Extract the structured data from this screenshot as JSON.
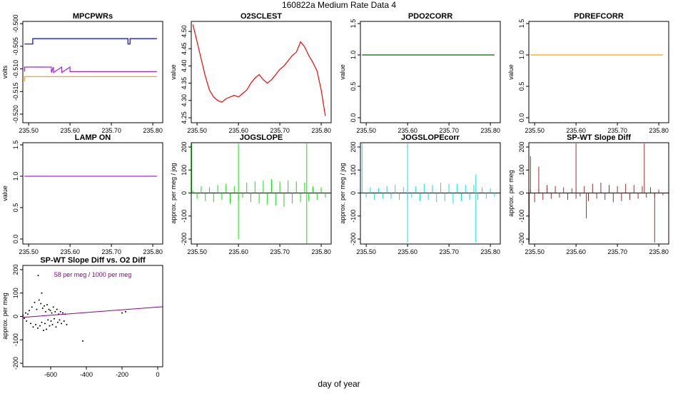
{
  "title": "160822a   Medium Rate Data 4",
  "xlabel": "day of year",
  "chart_data": [
    {
      "type": "line",
      "title": "MPCPWRs",
      "ylabel": "volts",
      "xlim": [
        235.486,
        235.824
      ],
      "ylim": [
        -0.5219,
        -0.4995
      ],
      "xticks": [
        {
          "value": 235.5,
          "label": "235.50"
        },
        {
          "value": 235.6,
          "label": "235.60"
        },
        {
          "value": 235.7,
          "label": "235.70"
        },
        {
          "value": 235.8,
          "label": "235.80"
        }
      ],
      "yticks": [
        {
          "value": -0.5,
          "label": "-0.500"
        },
        {
          "value": -0.505,
          "label": "-0.505"
        },
        {
          "value": -0.51,
          "label": "-0.510"
        },
        {
          "value": -0.515,
          "label": "-0.515"
        },
        {
          "value": -0.52,
          "label": "-0.520"
        }
      ],
      "series": [
        {
          "color": "#0000ff",
          "x": [
            235.49,
            235.51,
            235.51,
            235.74,
            235.74,
            235.745,
            235.745,
            235.81
          ],
          "values": [
            -0.5045,
            -0.5045,
            -0.5033,
            -0.5033,
            -0.5045,
            -0.5045,
            -0.5033,
            -0.5033
          ]
        },
        {
          "color": "#a020f0",
          "x": [
            235.49,
            235.49,
            235.495,
            235.555,
            235.555,
            235.56,
            235.56,
            235.58,
            235.58,
            235.6,
            235.6,
            235.81
          ],
          "values": [
            -0.5106,
            -0.5096,
            -0.5096,
            -0.5096,
            -0.5108,
            -0.5096,
            -0.5108,
            -0.5096,
            -0.5108,
            -0.5096,
            -0.5106,
            -0.5106
          ]
        },
        {
          "color": "#ffa500",
          "x": [
            235.49,
            235.49,
            235.81
          ],
          "values": [
            -0.5128,
            -0.5117,
            -0.5117
          ]
        }
      ]
    },
    {
      "type": "line",
      "title": "O2SCLEST",
      "ylabel": "value",
      "xlim": [
        235.486,
        235.824
      ],
      "ylim": [
        4.2355,
        4.529
      ],
      "xticks": [
        {
          "value": 235.5,
          "label": "235.50"
        },
        {
          "value": 235.6,
          "label": "235.60"
        },
        {
          "value": 235.7,
          "label": "235.70"
        },
        {
          "value": 235.8,
          "label": "235.80"
        }
      ],
      "yticks": [
        {
          "value": 4.25,
          "label": "4.25"
        },
        {
          "value": 4.3,
          "label": "4.30"
        },
        {
          "value": 4.35,
          "label": "4.35"
        },
        {
          "value": 4.4,
          "label": "4.40"
        },
        {
          "value": 4.45,
          "label": "4.45"
        },
        {
          "value": 4.5,
          "label": "4.50"
        }
      ],
      "x": [
        235.49,
        235.5,
        235.51,
        235.52,
        235.53,
        235.54,
        235.55,
        235.56,
        235.57,
        235.58,
        235.59,
        235.6,
        235.61,
        235.62,
        235.63,
        235.64,
        235.65,
        235.66,
        235.67,
        235.68,
        235.69,
        235.7,
        235.71,
        235.72,
        235.73,
        235.74,
        235.75,
        235.76,
        235.77,
        235.78,
        235.79,
        235.8,
        235.81
      ],
      "series": [
        {
          "color": "#ff0000",
          "values": [
            4.52,
            4.47,
            4.42,
            4.37,
            4.33,
            4.31,
            4.3,
            4.295,
            4.305,
            4.31,
            4.315,
            4.31,
            4.32,
            4.33,
            4.35,
            4.365,
            4.375,
            4.36,
            4.35,
            4.36,
            4.375,
            4.39,
            4.4,
            4.415,
            4.43,
            4.44,
            4.47,
            4.455,
            4.43,
            4.41,
            4.385,
            4.33,
            4.255
          ]
        }
      ]
    },
    {
      "type": "line",
      "title": "PDO2CORR",
      "ylabel": "value",
      "xlim": [
        235.486,
        235.824
      ],
      "ylim": [
        -0.08,
        1.534
      ],
      "xticks": [
        {
          "value": 235.5,
          "label": "235.50"
        },
        {
          "value": 235.6,
          "label": "235.60"
        },
        {
          "value": 235.7,
          "label": "235.70"
        },
        {
          "value": 235.8,
          "label": "235.80"
        }
      ],
      "yticks": [
        {
          "value": 0,
          "label": "0.0"
        },
        {
          "value": 0.5,
          "label": "0.5"
        },
        {
          "value": 1,
          "label": "1.0"
        },
        {
          "value": 1.5,
          "label": "1.5"
        }
      ],
      "x": [
        235.49,
        235.81
      ],
      "series": [
        {
          "color": "#006400",
          "values": [
            1,
            1
          ]
        }
      ]
    },
    {
      "type": "line",
      "title": "PDREFCORR",
      "ylabel": "value",
      "xlim": [
        235.486,
        235.824
      ],
      "ylim": [
        -0.08,
        1.534
      ],
      "xticks": [
        {
          "value": 235.5,
          "label": "235.50"
        },
        {
          "value": 235.6,
          "label": "235.60"
        },
        {
          "value": 235.7,
          "label": "235.70"
        },
        {
          "value": 235.8,
          "label": "235.80"
        }
      ],
      "yticks": [
        {
          "value": 0,
          "label": "0.0"
        },
        {
          "value": 0.5,
          "label": "0.5"
        },
        {
          "value": 1,
          "label": "1.0"
        },
        {
          "value": 1.5,
          "label": "1.5"
        }
      ],
      "x": [
        235.49,
        235.81
      ],
      "series": [
        {
          "color": "#ffa500",
          "values": [
            1,
            1
          ]
        }
      ]
    },
    {
      "type": "line",
      "title": "LAMP ON",
      "ylabel": "value",
      "xlim": [
        235.486,
        235.824
      ],
      "ylim": [
        -0.08,
        1.534
      ],
      "xticks": [
        {
          "value": 235.5,
          "label": "235.50"
        },
        {
          "value": 235.6,
          "label": "235.60"
        },
        {
          "value": 235.7,
          "label": "235.70"
        },
        {
          "value": 235.8,
          "label": "235.80"
        }
      ],
      "yticks": [
        {
          "value": 0,
          "label": "0.0"
        },
        {
          "value": 0.5,
          "label": "0.5"
        },
        {
          "value": 1,
          "label": "1.0"
        },
        {
          "value": 1.5,
          "label": "1.5"
        }
      ],
      "x": [
        235.49,
        235.81
      ],
      "series": [
        {
          "color": "#a020f0",
          "values": [
            1,
            1
          ]
        }
      ]
    },
    {
      "type": "needle",
      "title": "JOGSLOPE",
      "ylabel": "approx. per meg / jog",
      "xlim": [
        235.486,
        235.824
      ],
      "ylim": [
        -221.7,
        218.6
      ],
      "hline": 0,
      "xticks": [
        {
          "value": 235.5,
          "label": "235.50"
        },
        {
          "value": 235.6,
          "label": "235.60"
        },
        {
          "value": 235.7,
          "label": "235.70"
        },
        {
          "value": 235.8,
          "label": "235.80"
        }
      ],
      "yticks": [
        -200,
        -100,
        0,
        100,
        200
      ],
      "x": [
        235.49,
        235.5,
        235.51,
        235.52,
        235.53,
        235.54,
        235.55,
        235.56,
        235.57,
        235.58,
        235.59,
        235.6,
        235.61,
        235.62,
        235.63,
        235.64,
        235.65,
        235.66,
        235.67,
        235.68,
        235.69,
        235.7,
        235.71,
        235.72,
        235.73,
        235.74,
        235.75,
        235.76,
        235.77,
        235.78,
        235.79,
        235.8,
        235.81,
        235.487,
        235.6,
        235.6,
        235.765,
        235.765
      ],
      "series": [
        {
          "color": "#00ee00",
          "values": [
            10,
            -25,
            30,
            -35,
            25,
            -40,
            35,
            -30,
            40,
            -45,
            30,
            -35,
            -20,
            45,
            -40,
            50,
            -45,
            55,
            -50,
            60,
            -55,
            50,
            -60,
            55,
            -45,
            50,
            -40,
            45,
            -35,
            30,
            -30,
            25,
            -20,
            215,
            215,
            -200,
            215,
            -220
          ]
        }
      ]
    },
    {
      "type": "needle",
      "title": "JOGSLOPEcorr",
      "ylabel": "approx. per meg / jog",
      "xlim": [
        235.486,
        235.824
      ],
      "ylim": [
        -221.7,
        218.6
      ],
      "hline": 0,
      "xticks": [
        {
          "value": 235.5,
          "label": "235.50"
        },
        {
          "value": 235.6,
          "label": "235.60"
        },
        {
          "value": 235.7,
          "label": "235.70"
        },
        {
          "value": 235.8,
          "label": "235.80"
        }
      ],
      "yticks": [
        -200,
        -100,
        0,
        100,
        200
      ],
      "x": [
        235.49,
        235.5,
        235.51,
        235.52,
        235.53,
        235.54,
        235.55,
        235.56,
        235.57,
        235.58,
        235.59,
        235.6,
        235.61,
        235.62,
        235.63,
        235.64,
        235.65,
        235.66,
        235.67,
        235.68,
        235.69,
        235.7,
        235.71,
        235.72,
        235.73,
        235.74,
        235.75,
        235.76,
        235.77,
        235.78,
        235.79,
        235.8,
        235.81,
        235.49,
        235.6,
        235.6,
        235.765,
        235.765
      ],
      "series": [
        {
          "color": "#00e5ee",
          "values": [
            8,
            -20,
            25,
            -30,
            20,
            -25,
            30,
            -25,
            35,
            -30,
            25,
            -30,
            -20,
            30,
            -35,
            40,
            -30,
            35,
            -40,
            45,
            -35,
            40,
            -45,
            40,
            -35,
            35,
            -30,
            35,
            -30,
            25,
            -25,
            20,
            -15,
            215,
            215,
            -215,
            80,
            -215
          ]
        }
      ]
    },
    {
      "type": "needle",
      "title": "SP-WT Slope Diff",
      "ylabel": "approx. per meg",
      "xlim": [
        235.486,
        235.824
      ],
      "ylim": [
        -221.7,
        218.6
      ],
      "hline": 0,
      "xticks": [
        {
          "value": 235.5,
          "label": "235.50"
        },
        {
          "value": 235.6,
          "label": "235.60"
        },
        {
          "value": 235.7,
          "label": "235.70"
        },
        {
          "value": 235.8,
          "label": "235.80"
        }
      ],
      "yticks": [
        -200,
        -100,
        0,
        100,
        200
      ],
      "x": [
        235.49,
        235.5,
        235.51,
        235.52,
        235.53,
        235.54,
        235.55,
        235.56,
        235.57,
        235.58,
        235.59,
        235.6,
        235.61,
        235.62,
        235.63,
        235.64,
        235.65,
        235.66,
        235.67,
        235.68,
        235.69,
        235.7,
        235.71,
        235.72,
        235.73,
        235.74,
        235.75,
        235.76,
        235.77,
        235.78,
        235.79,
        235.8,
        235.81,
        235.487,
        235.49,
        235.51,
        235.6,
        235.625,
        235.765,
        235.79
      ],
      "series": [
        {
          "color": "#a52a2a",
          "values": [
            15,
            -40,
            20,
            -30,
            35,
            -25,
            30,
            -20,
            25,
            -30,
            20,
            -25,
            -15,
            30,
            -35,
            40,
            -25,
            45,
            -30,
            35,
            -40,
            30,
            -35,
            40,
            -30,
            35,
            -25,
            30,
            -20,
            25,
            -20,
            15,
            -10,
            -215,
            160,
            115,
            215,
            -110,
            215,
            -215
          ]
        }
      ]
    },
    {
      "type": "scatter",
      "title": "SP-WT Slope Diff vs. O2 Diff",
      "ylabel": "approx. per meg",
      "xlim": [
        -756,
        28
      ],
      "ylim": [
        -215,
        218
      ],
      "xticks": [
        -600,
        -400,
        -200,
        0
      ],
      "yticks": [
        -200,
        -100,
        0,
        100,
        200
      ],
      "annotation": {
        "text": "58 per meg / 1000 per meg",
        "color": "#8b008b"
      },
      "x": [
        -755,
        -748,
        -740,
        -735,
        -728,
        -720,
        -712,
        -705,
        -698,
        -690,
        -684,
        -678,
        -672,
        -665,
        -660,
        -655,
        -650,
        -645,
        -640,
        -636,
        -632,
        -628,
        -624,
        -620,
        -615,
        -610,
        -606,
        -602,
        -598,
        -594,
        -590,
        -585,
        -580,
        -575,
        -570,
        -565,
        -560,
        -555,
        -550,
        -545,
        -540,
        -532,
        -525,
        -518,
        -510,
        -670,
        -650,
        -420,
        -200,
        -180
      ],
      "values": [
        5,
        -8,
        15,
        -20,
        10,
        25,
        -30,
        40,
        -45,
        60,
        -35,
        30,
        -50,
        70,
        -40,
        55,
        -25,
        35,
        -60,
        45,
        -30,
        20,
        -55,
        50,
        -15,
        30,
        -40,
        25,
        -20,
        15,
        -35,
        40,
        -10,
        20,
        -45,
        30,
        -25,
        10,
        -15,
        20,
        -30,
        15,
        -20,
        10,
        -35,
        175,
        100,
        -105,
        15,
        20
      ],
      "color": "#000000",
      "fit": {
        "color": "#8b008b",
        "x": [
          -756,
          28
        ],
        "values": [
          -3.8,
          41.6
        ]
      }
    }
  ]
}
